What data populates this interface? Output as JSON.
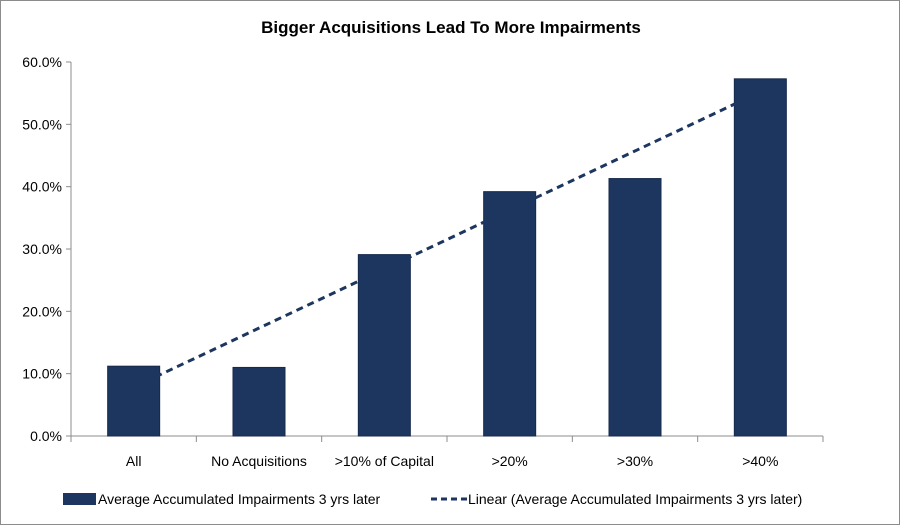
{
  "chart_data": {
    "type": "bar",
    "title": "Bigger Acquisitions Lead To More Impairments",
    "categories": [
      "All",
      "No Acquisitions",
      ">10% of Capital",
      ">20%",
      ">30%",
      ">40%"
    ],
    "series": [
      {
        "name": "Average Accumulated Impairments 3 yrs later",
        "values": [
          11.2,
          11.0,
          29.1,
          39.2,
          41.3,
          57.3
        ],
        "color": "#1c3660"
      }
    ],
    "trendline": {
      "name": "Linear (Average Accumulated Impairments 3 yrs later)",
      "type": "linear",
      "style": "dashed",
      "color": "#1c3660"
    },
    "ylim": [
      0,
      60
    ],
    "yticks": [
      "0.0%",
      "10.0%",
      "20.0%",
      "30.0%",
      "40.0%",
      "50.0%",
      "60.0%"
    ],
    "ytick_values": [
      0,
      10,
      20,
      30,
      40,
      50,
      60
    ],
    "grid": false,
    "legend_placement": "bottom"
  }
}
